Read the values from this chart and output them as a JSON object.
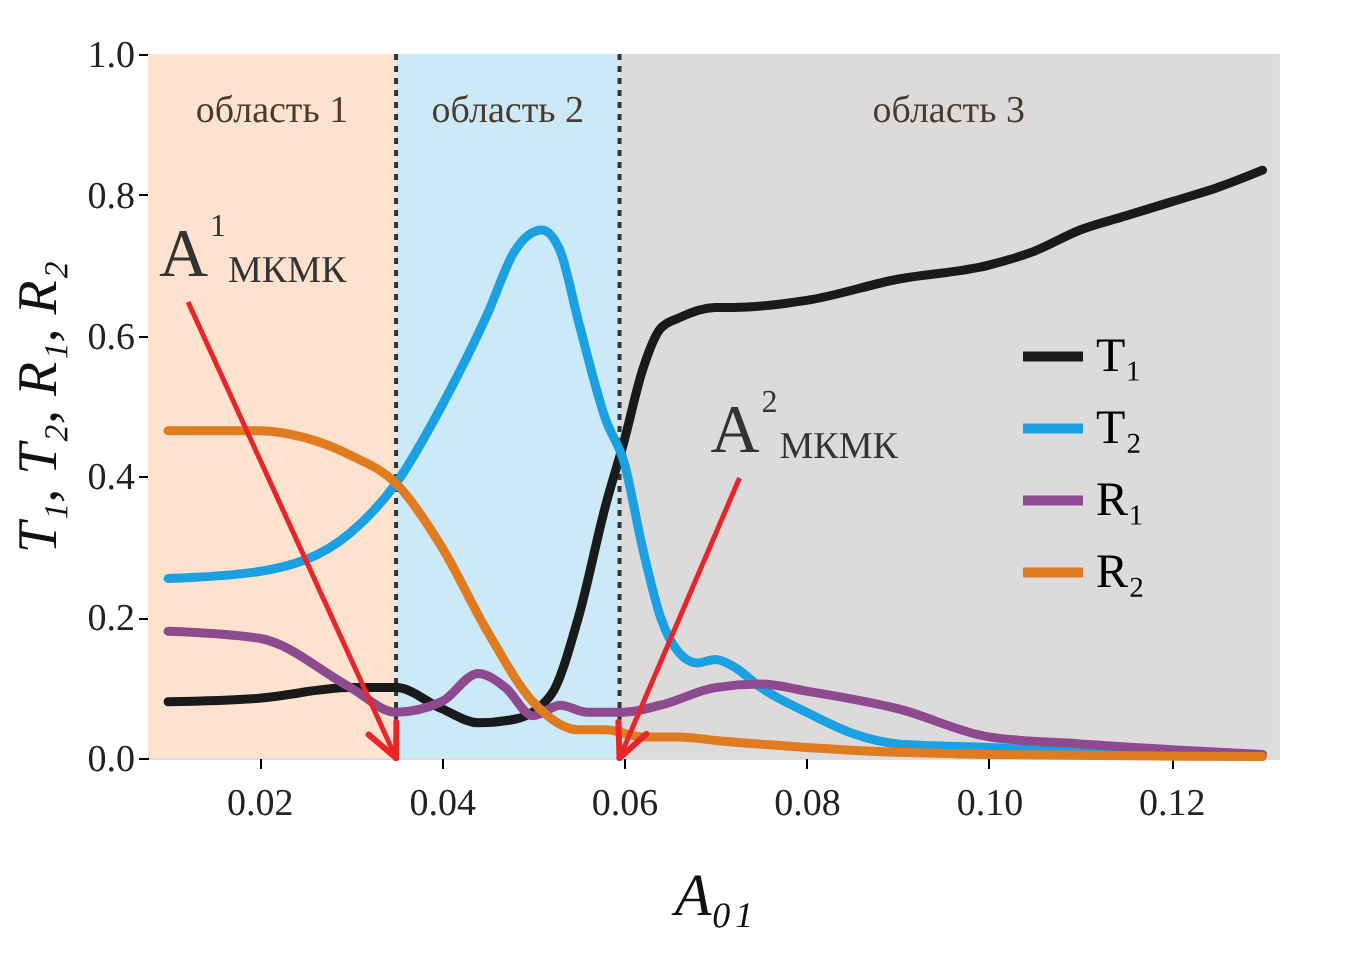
{
  "chart_data": {
    "type": "line",
    "xlabel": "A₀₁",
    "ylabel": "T₁, T₂, R₁, R₂",
    "xlim": [
      0.0078,
      0.1317
    ],
    "ylim": [
      0,
      1
    ],
    "xticks": [
      0.02,
      0.04,
      0.06,
      0.08,
      {
        "value": 0.1,
        "label": "0.10"
      },
      0.12
    ],
    "yticks": [
      {
        "value": 0,
        "label": "0.0"
      },
      0.2,
      0.4,
      0.6,
      0.8,
      {
        "value": 1,
        "label": "1.0"
      }
    ],
    "grid": false,
    "legend": "right",
    "line_style": "solid",
    "marker": "none",
    "bands": [
      {
        "axis": "x",
        "from": 0.0078,
        "to": 0.035,
        "label": "область 1",
        "color": "#fde2cf"
      },
      {
        "axis": "x",
        "from": 0.035,
        "to": 0.0595,
        "label": "область 2",
        "color": "#cbe9f7"
      },
      {
        "axis": "x",
        "from": 0.0595,
        "to": 0.1317,
        "label": "область 3",
        "color": "#dcdadb"
      }
    ],
    "ref_lines": [
      {
        "axis": "x",
        "value": 0.035,
        "label": null,
        "color": "#333333",
        "line_style": "dotted"
      },
      {
        "axis": "x",
        "value": 0.0595,
        "label": null,
        "color": "#333333",
        "line_style": "dotted"
      }
    ],
    "annotations": [
      {
        "text": "A$^{1}$$_{МКМК}$",
        "x": 0.035,
        "y": 0
      },
      {
        "text": "A$^{2}$$_{МКМК}$",
        "x": 0.0595,
        "y": 0
      }
    ],
    "series": [
      {
        "name": "T₁",
        "color": "#1a1a1a",
        "x": [
          0.01,
          0.02,
          0.03,
          0.035,
          0.04,
          0.044,
          0.048,
          0.052,
          0.055,
          0.058,
          0.06,
          0.062,
          0.064,
          0.066,
          0.07,
          0.072,
          0.08,
          0.09,
          0.1,
          0.105,
          0.11,
          0.115,
          0.12,
          0.125,
          0.13
        ],
        "values": [
          0.08,
          0.085,
          0.1,
          0.1,
          0.07,
          0.05,
          0.055,
          0.09,
          0.2,
          0.36,
          0.45,
          0.55,
          0.61,
          0.625,
          0.64,
          0.64,
          0.65,
          0.68,
          0.7,
          0.72,
          0.75,
          0.77,
          0.79,
          0.81,
          0.835
        ]
      },
      {
        "name": "T₂",
        "color": "#1ba1e2",
        "x": [
          0.01,
          0.02,
          0.03,
          0.035,
          0.04,
          0.045,
          0.048,
          0.051,
          0.053,
          0.055,
          0.058,
          0.06,
          0.062,
          0.064,
          0.066,
          0.068,
          0.07,
          0.072,
          0.075,
          0.08,
          0.085,
          0.09,
          0.1,
          0.11,
          0.13
        ],
        "values": [
          0.255,
          0.265,
          0.32,
          0.39,
          0.5,
          0.63,
          0.72,
          0.75,
          0.72,
          0.62,
          0.48,
          0.42,
          0.3,
          0.2,
          0.15,
          0.135,
          0.14,
          0.13,
          0.1,
          0.065,
          0.035,
          0.02,
          0.015,
          0.01,
          0.005
        ]
      },
      {
        "name": "R₁",
        "color": "#8e4a8f",
        "x": [
          0.01,
          0.02,
          0.03,
          0.035,
          0.04,
          0.044,
          0.047,
          0.05,
          0.053,
          0.056,
          0.06,
          0.064,
          0.07,
          0.075,
          0.08,
          0.09,
          0.1,
          0.11,
          0.13
        ],
        "values": [
          0.18,
          0.17,
          0.1,
          0.065,
          0.08,
          0.12,
          0.1,
          0.06,
          0.075,
          0.065,
          0.065,
          0.075,
          0.1,
          0.105,
          0.095,
          0.07,
          0.03,
          0.02,
          0.005
        ]
      },
      {
        "name": "R₂",
        "color": "#e07b20",
        "x": [
          0.01,
          0.02,
          0.025,
          0.03,
          0.035,
          0.04,
          0.045,
          0.05,
          0.055,
          0.058,
          0.062,
          0.066,
          0.07,
          0.08,
          0.09,
          0.1,
          0.13
        ],
        "values": [
          0.465,
          0.465,
          0.455,
          0.43,
          0.39,
          0.3,
          0.18,
          0.08,
          0.04,
          0.04,
          0.03,
          0.03,
          0.025,
          0.015,
          0.008,
          0.005,
          0.002
        ]
      }
    ]
  }
}
